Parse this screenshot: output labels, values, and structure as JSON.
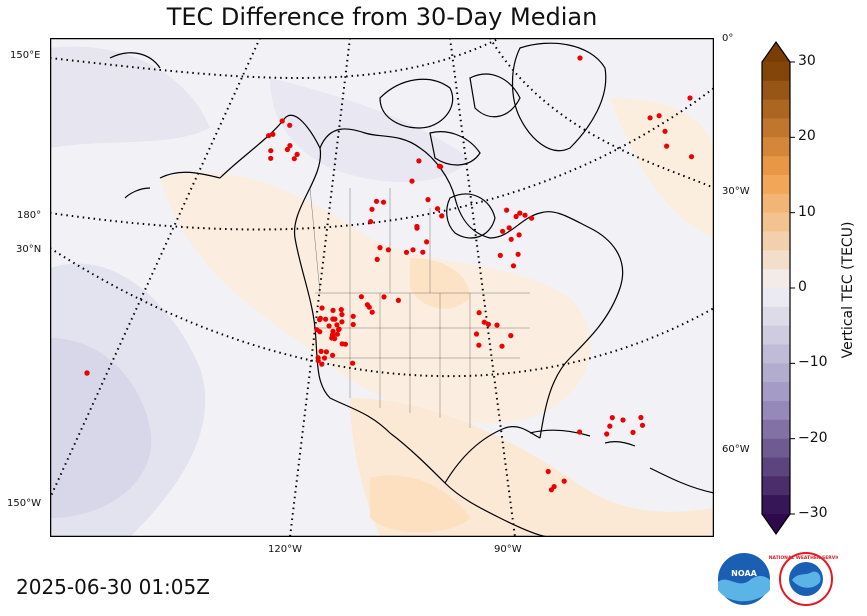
{
  "title": "TEC Difference from 30-Day Median",
  "timestamp": "2025-06-30 01:05Z",
  "colorbar": {
    "label": "Vertical TEC (TECU)",
    "ticks": [
      "30",
      "20",
      "10",
      "0",
      "−10",
      "−20",
      "−30"
    ],
    "min": -30,
    "max": 30,
    "colors": {
      "positive_max": "#7a3d05",
      "positive_mid": "#f2a04a",
      "neutral": "#f2f2f5",
      "negative_mid": "#9d94c2",
      "negative_max": "#2e0a4d"
    }
  },
  "map": {
    "projection_labels": {
      "left": [
        "150°E",
        "180°",
        "30°N",
        "150°W"
      ],
      "right": [
        "0°",
        "30°W",
        "60°W"
      ],
      "bottom": [
        "120°W",
        "90°W"
      ]
    },
    "station_color": "#ee0000",
    "station_count_visible": 150,
    "background_field": "TEC anomaly (mostly near zero, slight positive over continent, slight negative over Pacific)"
  },
  "logos": {
    "noaa": "NOAA",
    "nws": "NATIONAL WEATHER SERVICE"
  }
}
